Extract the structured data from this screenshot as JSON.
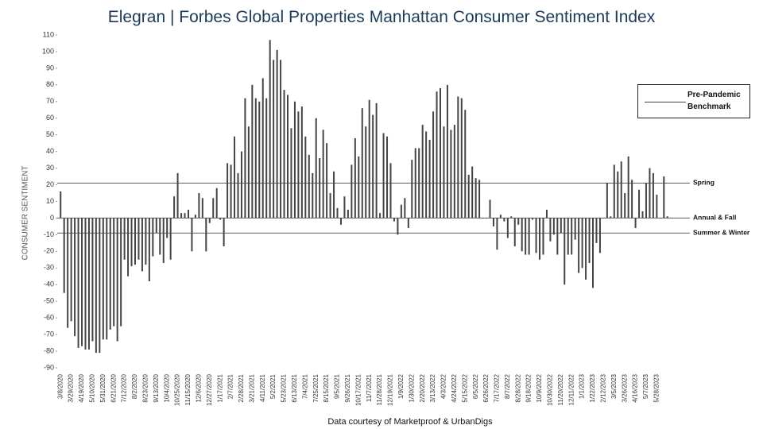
{
  "chart_data": {
    "type": "bar",
    "title_brand": "Elegran | Forbes Global Properties",
    "title": "Manhattan Consumer Sentiment Index",
    "y_label": "CONSUMER SENTIMENT",
    "source": "Data courtesy of Marketproof & UrbanDigs",
    "color": "#444444",
    "ylim": [
      -90,
      110
    ],
    "yticks": [
      -90,
      -80,
      -70,
      -60,
      -50,
      -40,
      -30,
      -20,
      -10,
      0,
      10,
      20,
      30,
      40,
      50,
      60,
      70,
      80,
      90,
      100,
      110
    ],
    "legend": {
      "label": "Pre-Pandemic Benchmark",
      "position": "upper right",
      "color": "#444444"
    },
    "reference_lines": [
      {
        "label": "Spring",
        "value": 21
      },
      {
        "label": "Annual & Fall",
        "value": 0
      },
      {
        "label": "Summer & Winter",
        "value": -9
      }
    ],
    "categories": [
      "3/8/2020",
      null,
      null,
      "3/29/2020",
      null,
      null,
      "4/19/2020",
      null,
      null,
      "5/10/2020",
      null,
      null,
      "5/31/2020",
      null,
      null,
      "6/21/2020",
      null,
      null,
      "7/12/2020",
      null,
      null,
      "8/2/2020",
      null,
      null,
      "8/23/2020",
      null,
      null,
      "9/13/2020",
      null,
      null,
      "10/4/2020",
      null,
      null,
      "10/25/2020",
      null,
      null,
      "11/15/2020",
      null,
      null,
      "12/6/2020",
      null,
      null,
      "12/27/2020",
      null,
      null,
      "1/17/2021",
      null,
      null,
      "2/7/2021",
      null,
      null,
      "2/28/2021",
      null,
      null,
      "3/21/2021",
      null,
      null,
      "4/11/2021",
      null,
      null,
      "5/2/2021",
      null,
      null,
      "5/23/2021",
      null,
      null,
      "6/13/2021",
      null,
      null,
      "7/4/2021",
      null,
      null,
      "7/25/2021",
      null,
      null,
      "8/15/2021",
      null,
      null,
      "9/5/2021",
      null,
      null,
      "9/26/2021",
      null,
      null,
      "10/17/2021",
      null,
      null,
      "11/7/2021",
      null,
      null,
      "11/28/2021",
      null,
      null,
      "12/19/2021",
      null,
      null,
      "1/9/2022",
      null,
      null,
      "1/30/2022",
      null,
      null,
      "2/20/2022",
      null,
      null,
      "3/13/2022",
      null,
      null,
      "4/3/2022",
      null,
      null,
      "4/24/2022",
      null,
      null,
      "5/15/2022",
      null,
      null,
      "6/5/2022",
      null,
      null,
      "6/26/2022",
      null,
      null,
      "7/17/2022",
      null,
      null,
      "8/7/2022",
      null,
      null,
      "8/28/2022",
      null,
      null,
      "9/18/2022",
      null,
      null,
      "10/9/2022",
      null,
      null,
      "10/30/2022",
      null,
      null,
      "11/20/2022",
      null,
      null,
      "12/11/2022",
      null,
      null,
      "1/1/2023",
      null,
      null,
      "1/22/2023",
      null,
      null,
      "2/12/2023",
      null,
      null,
      "3/5/2023",
      null,
      null,
      "3/26/2023",
      null,
      null,
      "4/16/2023",
      null,
      null,
      "5/7/2023",
      null,
      null,
      "5/28/2023",
      null,
      null,
      null
    ],
    "values": [
      16,
      -45,
      -66,
      -62,
      -71,
      -78,
      -77,
      -79,
      -79,
      -74,
      -81,
      -81,
      -73,
      -73,
      -67,
      -65,
      -74,
      -65,
      -25,
      -35,
      -29,
      -28,
      -25,
      -32,
      -28,
      -38,
      -23,
      -9,
      -22,
      -27,
      -12,
      -25,
      13,
      27,
      3,
      3,
      5,
      -20,
      2,
      15,
      12,
      -20,
      -3,
      12,
      18,
      -1,
      -17,
      33,
      32,
      49,
      27,
      40,
      72,
      55,
      80,
      72,
      70,
      84,
      72,
      107,
      95,
      101,
      95,
      77,
      74,
      54,
      70,
      64,
      67,
      49,
      38,
      27,
      60,
      36,
      53,
      45,
      15,
      28,
      6,
      -4,
      13,
      5,
      32,
      48,
      37,
      66,
      55,
      71,
      62,
      69,
      3,
      51,
      49,
      33,
      -2,
      -10,
      8,
      12,
      -6,
      35,
      42,
      42,
      56,
      52,
      47,
      64,
      76,
      78,
      55,
      80,
      53,
      56,
      73,
      72,
      65,
      26,
      31,
      24,
      23,
      0,
      0,
      11,
      -5,
      -19,
      2,
      -2,
      -12,
      1,
      -17,
      -4,
      -20,
      -22,
      -22,
      -1,
      -21,
      -25,
      -22,
      5,
      -14,
      -10,
      -22,
      -9,
      -40,
      -22,
      -22,
      -13,
      -33,
      -30,
      -37,
      -27,
      -42,
      -15,
      -21,
      0,
      21,
      1,
      32,
      28,
      34,
      15,
      37,
      23,
      -6,
      17,
      4,
      21,
      30,
      27,
      14,
      0,
      25,
      1
    ]
  }
}
